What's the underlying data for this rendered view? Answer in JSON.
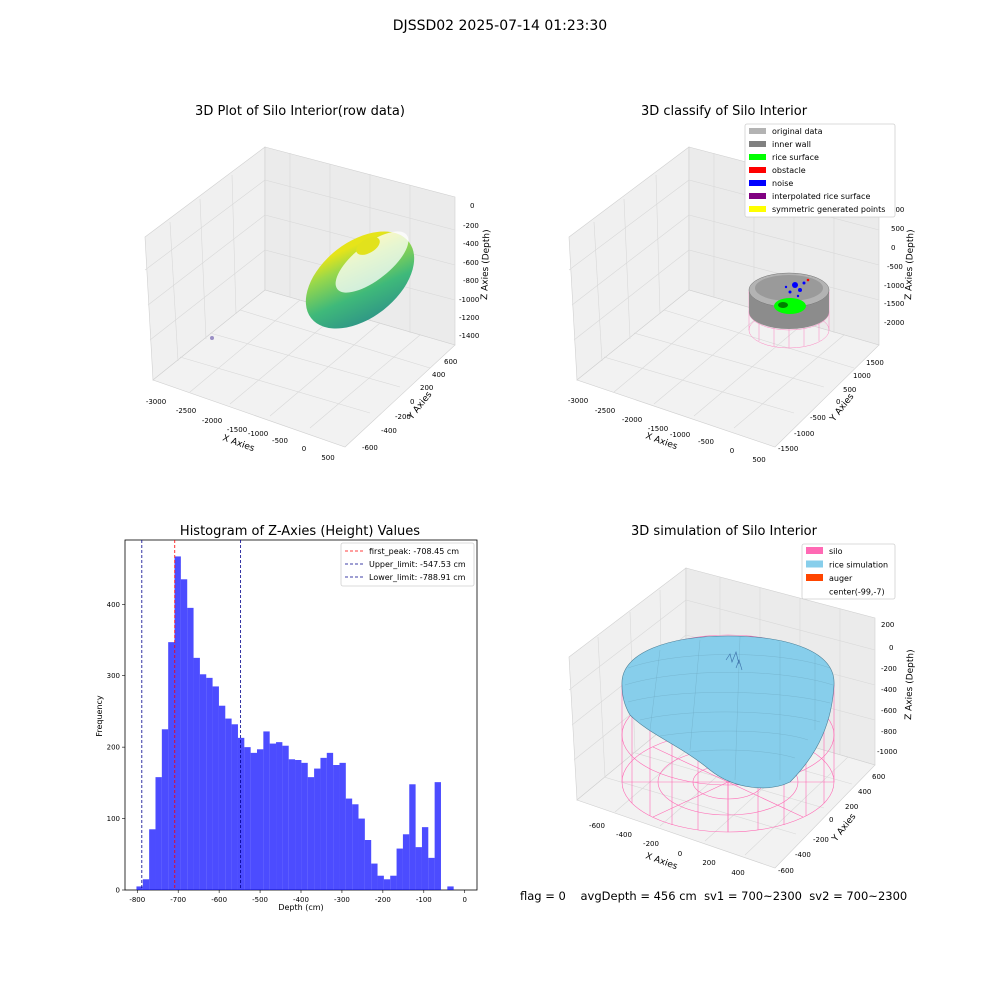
{
  "suptitle": "DJSSD02 2025-07-14 01:23:30",
  "panel1": {
    "title": "3D Plot of Silo Interior(row data)",
    "xlabel": "X Axies",
    "ylabel": "Y Axies",
    "zlabel": "Z Axies (Depth)",
    "xticks": [
      "-3000",
      "-2500",
      "-2000",
      "-1500",
      "-1000",
      "-500",
      "0",
      "500"
    ],
    "yticks": [
      "-600",
      "-400",
      "-200",
      "0",
      "200",
      "400",
      "600"
    ],
    "zticks": [
      "0",
      "-200",
      "-400",
      "-600",
      "-800",
      "-1000",
      "-1200",
      "-1400"
    ]
  },
  "panel2": {
    "title": "3D classify of Silo Interior",
    "xlabel": "X Axies",
    "ylabel": "Y Axies",
    "zlabel": "Z Axies (Depth)",
    "xticks": [
      "-3000",
      "-2500",
      "-2000",
      "-1500",
      "-1000",
      "-500",
      "0",
      "500"
    ],
    "yticks": [
      "-1500",
      "-1000",
      "-500",
      "0",
      "500",
      "1000",
      "1500"
    ],
    "zticks": [
      "500",
      "0",
      "-500",
      "-1000",
      "-1500",
      "-2000"
    ],
    "ztick_partial": "000",
    "legend": [
      {
        "label": "original data",
        "color": "#b3b3b3"
      },
      {
        "label": "inner wall",
        "color": "#808080"
      },
      {
        "label": "rice surface",
        "color": "#00ff00"
      },
      {
        "label": "obstacle",
        "color": "#ff0000"
      },
      {
        "label": "noise",
        "color": "#0000ff"
      },
      {
        "label": "interpolated rice surface",
        "color": "#800080"
      },
      {
        "label": "symmetric generated points",
        "color": "#ffff00"
      }
    ]
  },
  "panel4": {
    "title": "3D simulation of Silo Interior",
    "xlabel": "X Axies",
    "ylabel": "Y Axies",
    "zlabel": "Z Axies (Depth)",
    "xticks": [
      "-600",
      "-400",
      "-200",
      "0",
      "200",
      "400"
    ],
    "yticks": [
      "-600",
      "-400",
      "-200",
      "0",
      "200",
      "400",
      "600"
    ],
    "zticks": [
      "200",
      "0",
      "-200",
      "-400",
      "-600",
      "-800",
      "-1000"
    ],
    "legend": [
      {
        "label": "silo",
        "color": "#ff69b4"
      },
      {
        "label": "rice simulation",
        "color": "#87ceeb"
      },
      {
        "label": "auger",
        "color": "#ff4500"
      },
      {
        "label": "center(-99,-7)",
        "color": ""
      }
    ]
  },
  "chart_data": [
    {
      "type": "bar",
      "title": "Histogram of Z-Axies (Height) Values",
      "xlabel": "Depth (cm)",
      "ylabel": "Frequency",
      "xlim": [
        -830,
        30
      ],
      "ylim": [
        0,
        490
      ],
      "xticks": [
        -800,
        -700,
        -600,
        -500,
        -400,
        -300,
        -200,
        -100,
        0
      ],
      "yticks": [
        0,
        100,
        200,
        300,
        400
      ],
      "bin_width": 15.5,
      "bin_start": -802,
      "values": [
        5,
        15,
        85,
        158,
        225,
        347,
        467,
        435,
        395,
        325,
        302,
        297,
        285,
        258,
        240,
        232,
        213,
        200,
        192,
        197,
        222,
        205,
        207,
        202,
        183,
        182,
        178,
        158,
        170,
        185,
        192,
        175,
        178,
        128,
        120,
        100,
        70,
        37,
        20,
        15,
        20,
        58,
        78,
        148,
        60,
        88,
        45,
        151,
        0,
        5
      ],
      "lines": [
        {
          "label": "first_peak: -708.45 cm",
          "x": -708.45,
          "color": "#ff0000"
        },
        {
          "label": "Upper_limit: -547.53 cm",
          "x": -547.53,
          "color": "#00008b"
        },
        {
          "label": "Lower_limit: -788.91 cm",
          "x": -788.91,
          "color": "#00008b"
        }
      ],
      "bar_color": "#0000ff",
      "legend_position": "top-right"
    }
  ],
  "footer": {
    "flag": "flag = 0",
    "avg": "avgDepth = 456 cm",
    "sv1": "sv1 = 700~2300",
    "sv2": "sv2 = 700~2300"
  }
}
